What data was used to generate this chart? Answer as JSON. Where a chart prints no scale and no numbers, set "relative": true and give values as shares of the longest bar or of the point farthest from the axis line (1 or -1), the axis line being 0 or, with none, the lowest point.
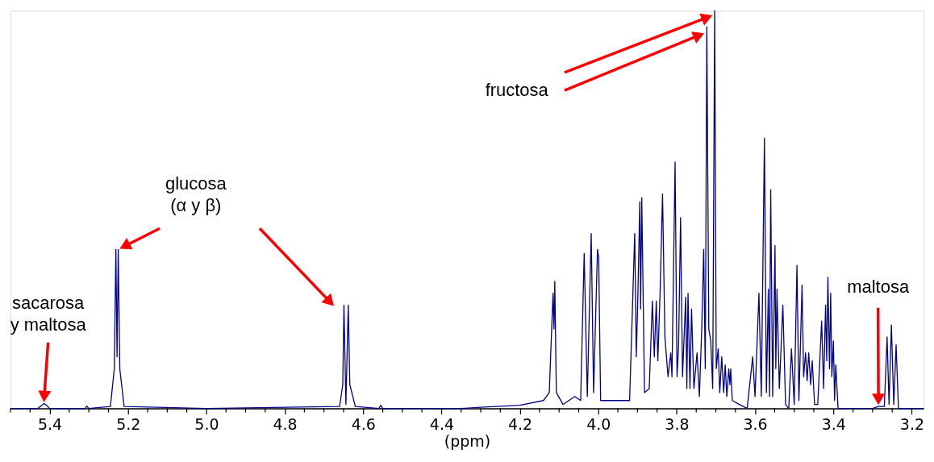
{
  "chart_data": {
    "type": "line",
    "relative": true,
    "xlabel": "(ppm)",
    "xlim": [
      5.5,
      3.17
    ],
    "xticks": [
      {
        "value": 5.5,
        "label": null
      },
      {
        "value": 5.45,
        "label": null
      },
      5.4,
      {
        "value": 5.35,
        "label": null
      },
      {
        "value": 5.3,
        "label": null
      },
      {
        "value": 5.25,
        "label": null
      },
      5.2,
      {
        "value": 5.15,
        "label": null
      },
      {
        "value": 5.1,
        "label": null
      },
      {
        "value": 5.05,
        "label": null
      },
      {
        "value": 5.0,
        "label": "5.0"
      },
      {
        "value": 4.95,
        "label": null
      },
      {
        "value": 4.9,
        "label": null
      },
      {
        "value": 4.85,
        "label": null
      },
      4.8,
      {
        "value": 4.75,
        "label": null
      },
      {
        "value": 4.7,
        "label": null
      },
      {
        "value": 4.65,
        "label": null
      },
      4.6,
      {
        "value": 4.55,
        "label": null
      },
      {
        "value": 4.5,
        "label": null
      },
      {
        "value": 4.45,
        "label": null
      },
      4.4,
      {
        "value": 4.35,
        "label": null
      },
      {
        "value": 4.3,
        "label": null
      },
      {
        "value": 4.25,
        "label": null
      },
      4.2,
      {
        "value": 4.15,
        "label": null
      },
      {
        "value": 4.1,
        "label": null
      },
      {
        "value": 4.05,
        "label": null
      },
      {
        "value": 4.0,
        "label": "4.0"
      },
      {
        "value": 3.95,
        "label": null
      },
      {
        "value": 3.9,
        "label": null
      },
      {
        "value": 3.85,
        "label": null
      },
      3.8,
      {
        "value": 3.75,
        "label": null
      },
      {
        "value": 3.7,
        "label": null
      },
      {
        "value": 3.65,
        "label": null
      },
      3.6,
      {
        "value": 3.55,
        "label": null
      },
      {
        "value": 3.5,
        "label": null
      },
      {
        "value": 3.45,
        "label": null
      },
      3.4,
      {
        "value": 3.35,
        "label": null
      },
      {
        "value": 3.3,
        "label": null
      },
      {
        "value": 3.25,
        "label": null
      },
      3.2
    ],
    "grid": false,
    "marker": "none",
    "line_style": "solid",
    "annotations": [
      "fructosa",
      {
        "text": "glucosa\n(α y β)",
        "x": 5.225,
        "y": 0.4
      },
      {
        "text": "sacarosa\ny maltosa",
        "x": 5.415,
        "y": 0.012
      },
      {
        "text": "maltosa",
        "x": 3.285,
        "y": 0.005
      }
    ],
    "x": [
      5.5,
      5.43,
      5.415,
      5.41,
      5.4,
      5.31,
      5.305,
      5.3,
      5.245,
      5.235,
      5.231,
      5.228,
      5.225,
      5.221,
      5.21,
      5.0,
      4.66,
      4.652,
      4.649,
      4.644,
      4.638,
      4.634,
      4.62,
      4.56,
      4.555,
      4.55,
      4.35,
      4.3,
      4.2,
      4.14,
      4.125,
      4.1155,
      4.113,
      4.111,
      4.107,
      4.09,
      4.06,
      4.045,
      4.036,
      4.028,
      4.018,
      4.012,
      4.002,
      3.999,
      3.994,
      3.96,
      3.92,
      3.907,
      3.903,
      3.899,
      3.894,
      3.892,
      3.889,
      3.882,
      3.87,
      3.862,
      3.857,
      3.852,
      3.848,
      3.842,
      3.836,
      3.83,
      3.822,
      3.815,
      3.812,
      3.804,
      3.799,
      3.795,
      3.79,
      3.785,
      3.777,
      3.774,
      3.771,
      3.766,
      3.762,
      3.756,
      3.748,
      3.742,
      3.736,
      3.731,
      3.727,
      3.723,
      3.718,
      3.713,
      3.708,
      3.703,
      3.699,
      3.694,
      3.69,
      3.685,
      3.68,
      3.676,
      3.672,
      3.667,
      3.664,
      3.662,
      3.658,
      3.64,
      3.62,
      3.606,
      3.6,
      3.59,
      3.584,
      3.576,
      3.571,
      3.566,
      3.563,
      3.56,
      3.555,
      3.549,
      3.547,
      3.544,
      3.538,
      3.529,
      3.522,
      3.514,
      3.507,
      3.5,
      3.493,
      3.488,
      3.48,
      3.476,
      3.471,
      3.467,
      3.463,
      3.458,
      3.454,
      3.448,
      3.44,
      3.43,
      3.425,
      3.42,
      3.417,
      3.414,
      3.41,
      3.407,
      3.404,
      3.4,
      3.397,
      3.394,
      3.388,
      3.3,
      3.285,
      3.27,
      3.263,
      3.258,
      3.252,
      3.246,
      3.24,
      3.234,
      3.17
    ],
    "series": [
      {
        "color": "#00008b",
        "values": [
          0.0,
          0.0,
          0.012,
          0.01,
          0.0,
          0.0,
          0.006,
          0.0,
          0.005,
          0.1,
          0.4,
          0.13,
          0.4,
          0.1,
          0.005,
          0.0,
          0.005,
          0.06,
          0.26,
          0.01,
          0.26,
          0.06,
          0.005,
          0.0,
          0.008,
          0.0,
          0.0,
          0.003,
          0.008,
          0.02,
          0.04,
          0.29,
          0.2,
          0.32,
          0.04,
          0.01,
          0.03,
          0.02,
          0.39,
          0.03,
          0.44,
          0.04,
          0.4,
          0.38,
          0.02,
          0.02,
          0.02,
          0.44,
          0.13,
          0.28,
          0.52,
          0.25,
          0.53,
          0.04,
          0.05,
          0.27,
          0.13,
          0.27,
          0.12,
          0.3,
          0.54,
          0.18,
          0.08,
          0.14,
          0.08,
          0.62,
          0.08,
          0.16,
          0.48,
          0.08,
          0.28,
          0.05,
          0.29,
          0.05,
          0.25,
          0.05,
          0.14,
          0.03,
          0.2,
          0.4,
          0.1,
          0.96,
          0.2,
          0.17,
          0.05,
          1.0,
          0.1,
          0.15,
          0.04,
          0.13,
          0.04,
          0.11,
          0.03,
          0.1,
          0.06,
          0.1,
          0.02,
          0.01,
          0.0,
          0.13,
          0.03,
          0.29,
          0.03,
          0.68,
          0.04,
          0.3,
          0.03,
          0.55,
          0.03,
          0.41,
          0.1,
          0.3,
          0.05,
          0.26,
          0.01,
          0.0,
          0.15,
          0.01,
          0.36,
          0.02,
          0.31,
          0.08,
          0.14,
          0.07,
          0.14,
          0.06,
          0.12,
          0.01,
          0.01,
          0.22,
          0.05,
          0.26,
          0.12,
          0.33,
          0.1,
          0.29,
          0.08,
          0.17,
          0.02,
          0.11,
          0.0,
          0.0,
          0.005,
          0.005,
          0.18,
          0.01,
          0.21,
          0.01,
          0.16,
          0.0,
          0.0
        ]
      }
    ]
  }
}
